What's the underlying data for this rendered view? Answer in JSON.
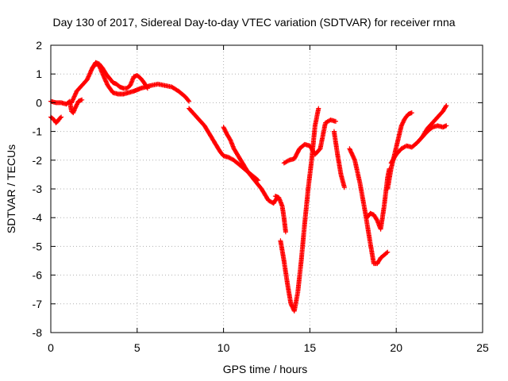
{
  "chart_data": {
    "type": "scatter",
    "title": "Day 130 of 2017, Sidereal Day-to-day VTEC variation (SDTVAR) for receiver rnna",
    "xlabel": "GPS time / hours",
    "ylabel": "SDTVAR / TECUs",
    "xlim": [
      0,
      25
    ],
    "ylim": [
      -8,
      2
    ],
    "x_ticks": [
      0,
      5,
      10,
      15,
      20,
      25
    ],
    "y_ticks": [
      -8,
      -7,
      -6,
      -5,
      -4,
      -3,
      -2,
      -1,
      0,
      1,
      2
    ],
    "x_tick_labels": [
      "0",
      "5",
      "10",
      "15",
      "20",
      "25"
    ],
    "y_tick_labels": [
      "-8",
      "-7",
      "-6",
      "-5",
      "-4",
      "-3",
      "-2",
      "-1",
      "0",
      "1",
      "2"
    ],
    "grid": true,
    "marker": "plus",
    "color": "#ff0000",
    "series": [
      {
        "x": [
          0.0,
          0.1,
          0.2,
          0.3,
          0.4,
          0.5,
          0.6
        ],
        "y": [
          -0.5,
          -0.55,
          -0.6,
          -0.7,
          -0.65,
          -0.55,
          -0.5
        ]
      },
      {
        "x": [
          0.0,
          0.3,
          0.6,
          0.9,
          1.1,
          1.2,
          1.3,
          1.4,
          1.6,
          1.8
        ],
        "y": [
          0.05,
          0.0,
          0.0,
          -0.05,
          0.05,
          -0.3,
          -0.35,
          -0.2,
          0.05,
          0.1
        ]
      },
      {
        "x": [
          1.2,
          1.5,
          1.8,
          2.1,
          2.4,
          2.6,
          2.8,
          3.0,
          3.3,
          3.6,
          3.9,
          4.2,
          4.5,
          4.8,
          5.0,
          5.2,
          5.5,
          5.8,
          6.2,
          6.6,
          7.0,
          7.4,
          7.8,
          8.0
        ],
        "y": [
          0.0,
          0.4,
          0.6,
          0.8,
          1.2,
          1.35,
          1.3,
          1.0,
          0.6,
          0.35,
          0.3,
          0.3,
          0.35,
          0.4,
          0.45,
          0.5,
          0.55,
          0.6,
          0.65,
          0.6,
          0.55,
          0.4,
          0.2,
          0.05
        ]
      },
      {
        "x": [
          2.4,
          2.6,
          2.8,
          3.0,
          3.2,
          3.4,
          3.6,
          3.8,
          4.0,
          4.2,
          4.4,
          4.6,
          4.8,
          5.0,
          5.2,
          5.4,
          5.6
        ],
        "y": [
          1.2,
          1.4,
          1.35,
          1.2,
          1.0,
          0.85,
          0.7,
          0.65,
          0.55,
          0.5,
          0.5,
          0.6,
          0.9,
          0.95,
          0.85,
          0.7,
          0.5
        ]
      },
      {
        "x": [
          8.0,
          8.3,
          8.6,
          8.9,
          9.2,
          9.5,
          9.8,
          10.0,
          10.3,
          10.6,
          11.0,
          11.4,
          11.8,
          12.2,
          12.6,
          12.9,
          13.1
        ],
        "y": [
          -0.2,
          -0.4,
          -0.6,
          -0.8,
          -1.1,
          -1.4,
          -1.7,
          -1.85,
          -1.9,
          -2.0,
          -2.2,
          -2.4,
          -2.7,
          -3.0,
          -3.4,
          -3.5,
          -3.3
        ]
      },
      {
        "x": [
          10.0,
          10.2,
          10.4,
          10.6,
          10.8,
          11.0,
          11.2,
          11.4,
          11.6,
          11.8,
          12.0
        ],
        "y": [
          -0.85,
          -1.1,
          -1.3,
          -1.6,
          -1.8,
          -2.0,
          -2.2,
          -2.4,
          -2.5,
          -2.6,
          -2.7
        ]
      },
      {
        "x": [
          13.0,
          13.2,
          13.4,
          13.5,
          13.6
        ],
        "y": [
          -3.25,
          -3.3,
          -3.6,
          -4.0,
          -4.5
        ]
      },
      {
        "x": [
          13.3,
          13.5,
          13.7,
          13.9,
          14.1,
          14.3,
          14.5,
          14.7,
          14.9,
          15.1,
          15.3,
          15.5
        ],
        "y": [
          -4.8,
          -5.5,
          -6.3,
          -7.0,
          -7.25,
          -6.6,
          -5.5,
          -4.2,
          -3.0,
          -2.0,
          -0.8,
          -0.2
        ]
      },
      {
        "x": [
          13.5,
          13.8,
          14.1,
          14.4,
          14.7,
          15.0,
          15.3,
          15.6,
          15.9,
          16.2,
          16.5
        ],
        "y": [
          -2.1,
          -2.0,
          -1.95,
          -1.6,
          -1.45,
          -1.5,
          -1.8,
          -1.6,
          -0.7,
          -0.6,
          -0.65
        ]
      },
      {
        "x": [
          16.4,
          16.6,
          16.8,
          17.0
        ],
        "y": [
          -1.0,
          -1.8,
          -2.5,
          -2.95
        ]
      },
      {
        "x": [
          17.3,
          17.6,
          17.9,
          18.2,
          18.5,
          18.7,
          18.9,
          19.1,
          19.3,
          19.5
        ],
        "y": [
          -1.6,
          -2.0,
          -2.8,
          -3.8,
          -4.9,
          -5.6,
          -5.6,
          -5.4,
          -5.3,
          -5.2
        ]
      },
      {
        "x": [
          18.3,
          18.5,
          18.7,
          18.9,
          19.1,
          19.3,
          19.5,
          19.6
        ],
        "y": [
          -4.0,
          -3.85,
          -3.9,
          -4.1,
          -4.4,
          -3.6,
          -2.6,
          -2.3
        ]
      },
      {
        "x": [
          19.5,
          19.7,
          19.9,
          20.1,
          20.3,
          20.5,
          20.7,
          20.9
        ],
        "y": [
          -3.0,
          -2.3,
          -1.8,
          -1.3,
          -0.8,
          -0.55,
          -0.4,
          -0.35
        ]
      },
      {
        "x": [
          19.7,
          20.0,
          20.3,
          20.6,
          20.9,
          21.2,
          21.5,
          21.8,
          22.1,
          22.4,
          22.7,
          22.9
        ],
        "y": [
          -2.1,
          -1.8,
          -1.6,
          -1.5,
          -1.55,
          -1.4,
          -1.2,
          -0.9,
          -0.7,
          -0.5,
          -0.3,
          -0.1
        ]
      },
      {
        "x": [
          21.5,
          21.8,
          22.1,
          22.4,
          22.7,
          22.9
        ],
        "y": [
          -1.2,
          -1.0,
          -0.85,
          -0.8,
          -0.85,
          -0.8
        ]
      }
    ]
  }
}
